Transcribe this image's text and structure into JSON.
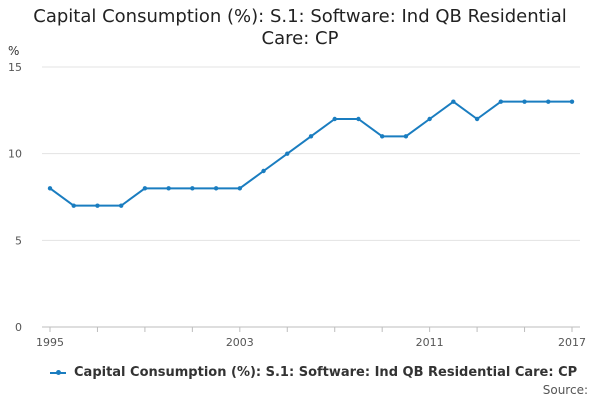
{
  "chart_data": {
    "type": "line",
    "title_line1": "Capital Consumption (%): S.1: Software: Ind QB Residential",
    "title_line2": "Care: CP",
    "ylabel": "%",
    "ylim": [
      0,
      15
    ],
    "yticks": [
      0,
      5,
      10,
      15
    ],
    "xticks": [
      1995,
      2003,
      2011,
      2017
    ],
    "grid": true,
    "series": [
      {
        "name": "Capital Consumption (%): S.1: Software: Ind QB Residential Care: CP",
        "color": "#1a7dc0",
        "x": [
          1995,
          1996,
          1997,
          1998,
          1999,
          2000,
          2001,
          2002,
          2003,
          2004,
          2005,
          2006,
          2007,
          2008,
          2009,
          2010,
          2011,
          2012,
          2013,
          2014,
          2015,
          2016,
          2017
        ],
        "values": [
          8,
          7,
          7,
          7,
          8,
          8,
          8,
          8,
          8,
          9,
          10,
          11,
          12,
          12,
          11,
          11,
          12,
          13,
          12,
          13,
          13,
          13,
          13
        ]
      }
    ],
    "legend_label": "Capital Consumption (%): S.1: Software: Ind QB Residential Care: CP",
    "source_label": "Source:"
  }
}
